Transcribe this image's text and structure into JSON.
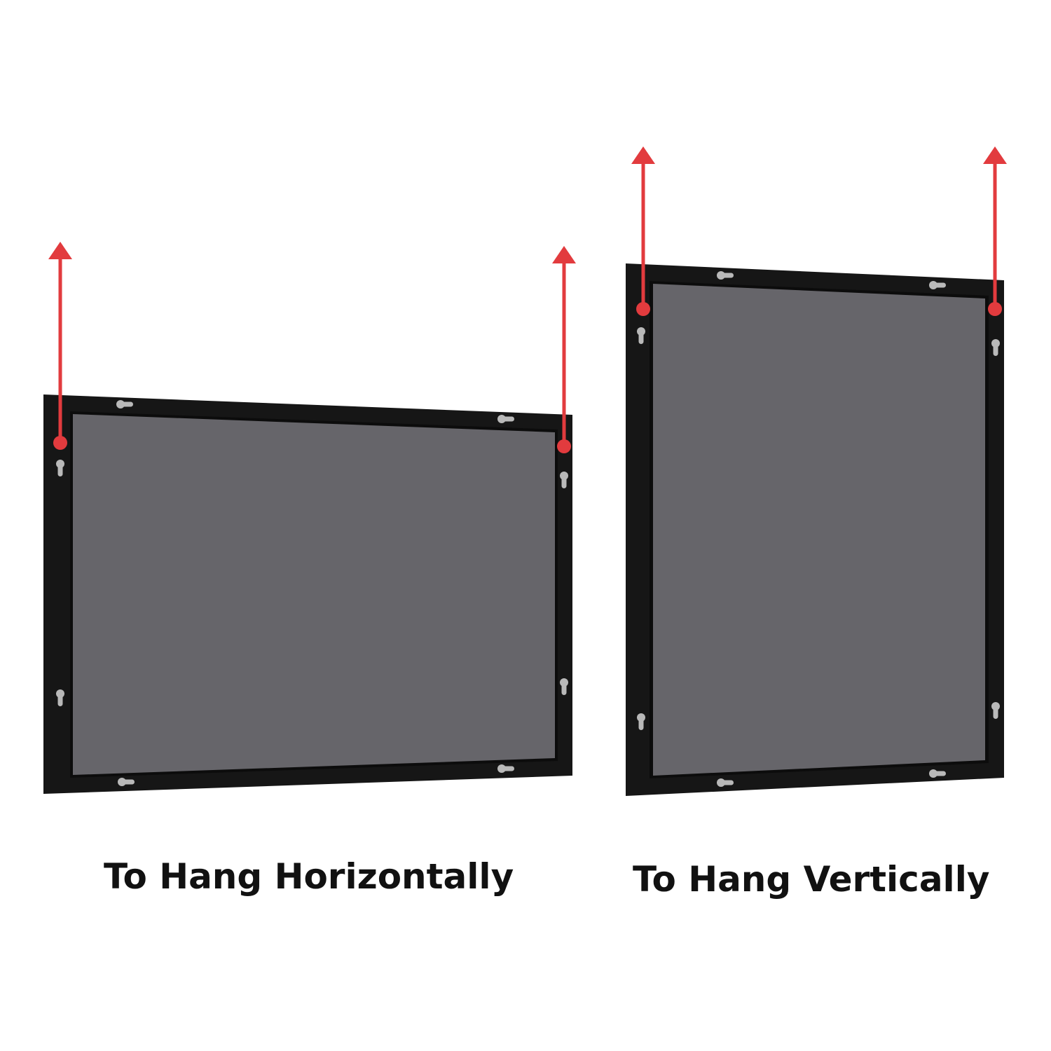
{
  "captions": {
    "horizontal": "To Hang Horizontally",
    "vertical": "To Hang Vertically"
  },
  "colors": {
    "background": "#ffffff",
    "frame": "#161616",
    "frame_edge": "#2a2a2a",
    "backing": "#66656a",
    "arrow": "#e23b3e",
    "keyhole": "#b9b9b9",
    "caption": "#111111"
  },
  "icons": {
    "hanging_arrow": "arrow-up-icon",
    "keyhole_hanger": "keyhole-hanger-icon"
  }
}
